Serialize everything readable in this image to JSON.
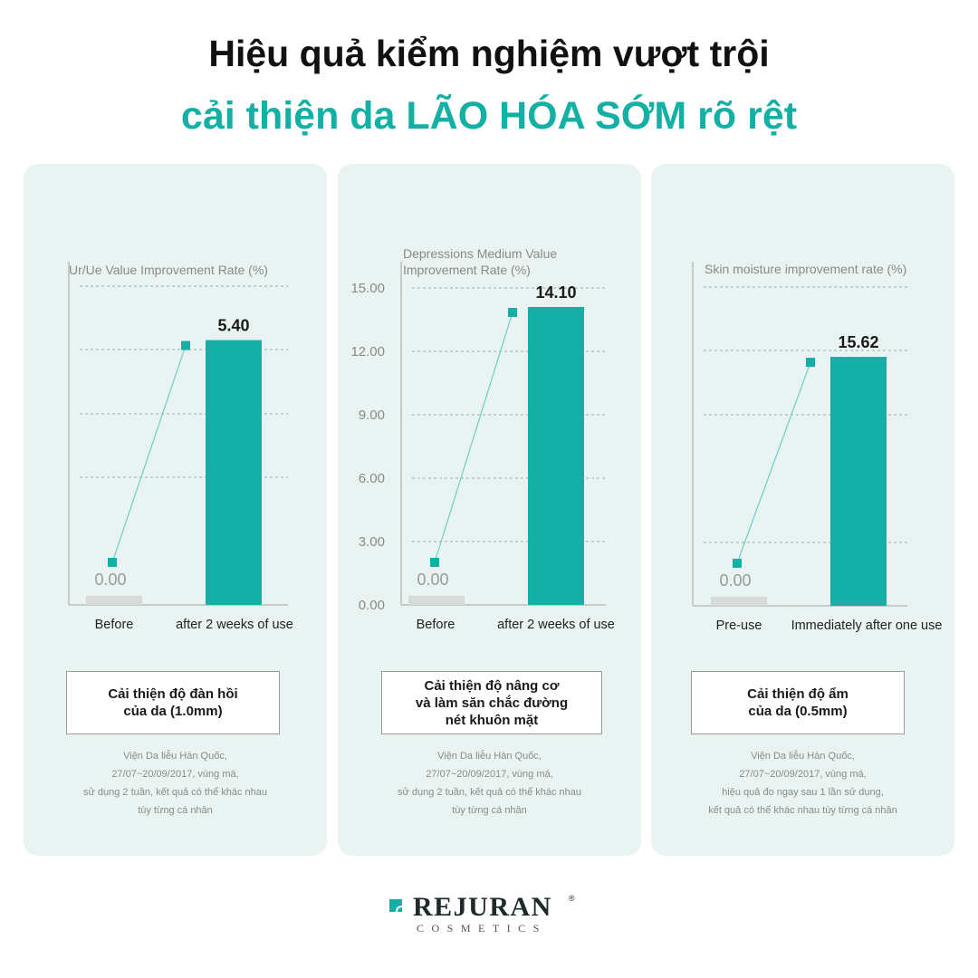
{
  "header": {
    "line1": "Hiệu quả kiểm nghiệm vượt trội",
    "line2": "cải thiện da LÃO HÓA SỚM rõ rệt"
  },
  "colors": {
    "accent": "#15b0a5",
    "bar_before": "#d6dad8",
    "panel_bg": "#e9f3f1"
  },
  "chart_data": [
    {
      "type": "bar",
      "title": "Ur/Ue Value Improvement Rate (%)",
      "ylabel_lines": [
        "Ur/Ue Value Improvement Rate (%)"
      ],
      "categories": [
        "Before",
        "after 2 weeks of use"
      ],
      "values": [
        0.0,
        5.4
      ],
      "value_labels": [
        "0.00",
        "5.40"
      ],
      "ytick_labels": [],
      "ylim": [
        0,
        6.5
      ],
      "grid": true,
      "caption": "Cải thiện độ đàn hồi\ncủa da (1.0mm)",
      "note": "Viện Da liễu Hàn Quốc,\n27/07~20/09/2017, vùng má,\nsử dụng 2 tuần, kết quả có thể khác nhau\ntùy từng cá nhân"
    },
    {
      "type": "bar",
      "title": "Depressions Medium Value Improvement Rate (%)",
      "ylabel_lines": [
        "Depressions Medium Value",
        "Improvement Rate (%)"
      ],
      "categories": [
        "Before",
        "after 2 weeks of use"
      ],
      "values": [
        0.0,
        14.1
      ],
      "value_labels": [
        "0.00",
        "14.10"
      ],
      "ytick_labels": [
        "0.00",
        "3.00",
        "6.00",
        "9.00",
        "12.00",
        "15.00"
      ],
      "yticks": [
        0,
        3,
        6,
        9,
        12,
        15
      ],
      "ylim": [
        0,
        15
      ],
      "grid": true,
      "caption": "Cải thiện độ nâng cơ\nvà làm săn chắc đường\nnét khuôn mặt",
      "note": "Viện Da liễu Hàn Quốc,\n27/07~20/09/2017, vùng má,\nsử dụng 2 tuần, kết quả có thể khác nhau\ntùy từng cá nhân"
    },
    {
      "type": "bar",
      "title": "Skin moisture improvement rate (%)",
      "ylabel_lines": [
        "Skin moisture improvement rate (%)"
      ],
      "categories": [
        "Pre-use",
        "Immediately after one use"
      ],
      "values": [
        0.0,
        15.62
      ],
      "value_labels": [
        "0.00",
        "15.62"
      ],
      "ytick_labels": [],
      "ylim": [
        0,
        20
      ],
      "grid": true,
      "caption": "Cải thiện độ ẩm\ncủa da (0.5mm)",
      "note": "Viện Da liễu Hàn Quốc,\n27/07~20/09/2017, vùng má,\nhiệu quả đo ngay sau 1 lần sử dụng,\nkết quả có thể khác nhau tùy từng cá nhân"
    }
  ],
  "brand": {
    "name": "REJURAN",
    "reg": "®",
    "sub": "COSMETICS",
    "icon": "leaf-icon"
  }
}
